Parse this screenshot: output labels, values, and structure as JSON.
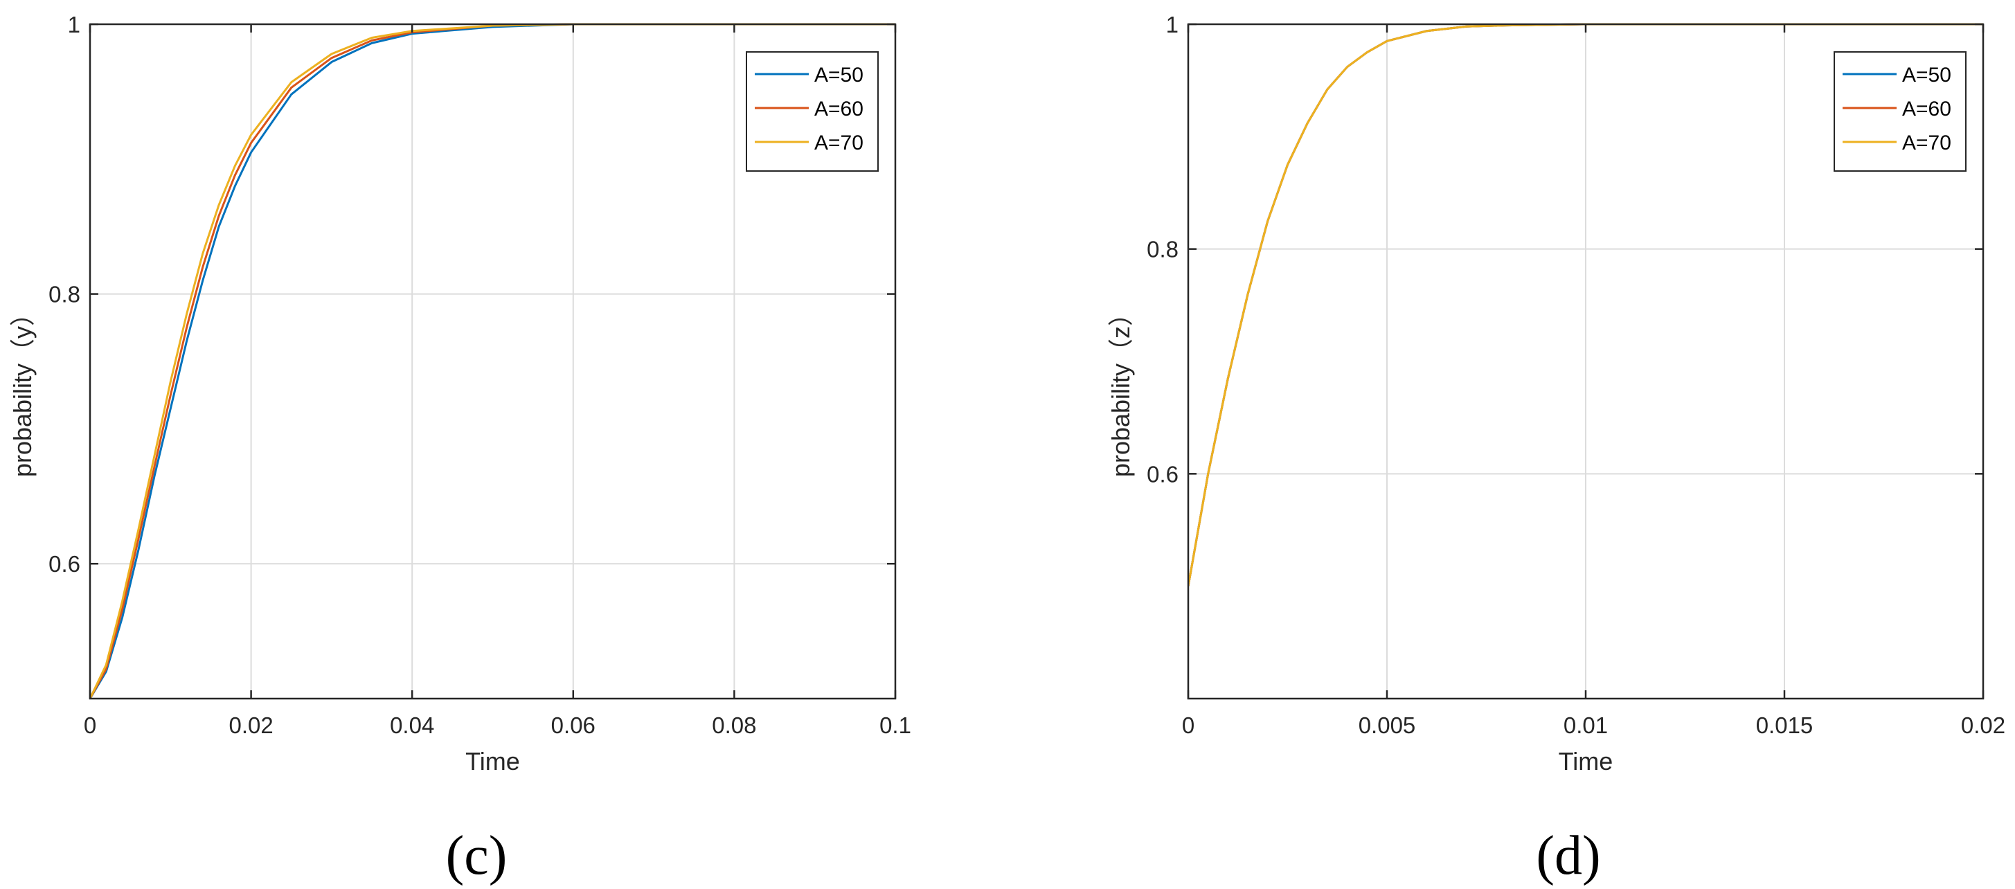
{
  "chart_data": [
    {
      "type": "line",
      "xlabel": "Time",
      "ylabel": "probability（y）",
      "caption": "(c)",
      "xlim": [
        0,
        0.1
      ],
      "ylim": [
        0.5,
        1
      ],
      "xticks": [
        0,
        0.02,
        0.04,
        0.06,
        0.08,
        0.1
      ],
      "xtick_labels": [
        "0",
        "0.02",
        "0.04",
        "0.06",
        "0.08",
        "0.1"
      ],
      "yticks": [
        0.6,
        0.8,
        1
      ],
      "ytick_labels": [
        "0.6",
        "0.8",
        "1"
      ],
      "grid": true,
      "legend_position": "top-right",
      "series": [
        {
          "name": "A=50",
          "color": "#0072BD",
          "x": [
            0,
            0.002,
            0.004,
            0.006,
            0.008,
            0.01,
            0.012,
            0.014,
            0.016,
            0.018,
            0.02,
            0.025,
            0.03,
            0.035,
            0.04,
            0.05,
            0.06,
            0.08,
            0.1
          ],
          "y": [
            0.5,
            0.52,
            0.56,
            0.61,
            0.665,
            0.715,
            0.765,
            0.81,
            0.85,
            0.88,
            0.905,
            0.948,
            0.972,
            0.986,
            0.993,
            0.998,
            1.0,
            1.0,
            1.0
          ]
        },
        {
          "name": "A=60",
          "color": "#D95319",
          "x": [
            0,
            0.002,
            0.004,
            0.006,
            0.008,
            0.01,
            0.012,
            0.014,
            0.016,
            0.018,
            0.02,
            0.025,
            0.03,
            0.035,
            0.04,
            0.05,
            0.06,
            0.08,
            0.1
          ],
          "y": [
            0.5,
            0.522,
            0.566,
            0.618,
            0.672,
            0.725,
            0.775,
            0.82,
            0.858,
            0.888,
            0.912,
            0.953,
            0.975,
            0.988,
            0.994,
            0.999,
            1.0,
            1.0,
            1.0
          ]
        },
        {
          "name": "A=70",
          "color": "#EDB120",
          "x": [
            0,
            0.002,
            0.004,
            0.006,
            0.008,
            0.01,
            0.012,
            0.014,
            0.016,
            0.018,
            0.02,
            0.025,
            0.03,
            0.035,
            0.04,
            0.05,
            0.06,
            0.08,
            0.1
          ],
          "y": [
            0.5,
            0.525,
            0.572,
            0.625,
            0.68,
            0.735,
            0.785,
            0.83,
            0.866,
            0.895,
            0.918,
            0.957,
            0.978,
            0.99,
            0.995,
            0.999,
            1.0,
            1.0,
            1.0
          ]
        }
      ]
    },
    {
      "type": "line",
      "xlabel": "Time",
      "ylabel": "probability（z）",
      "caption": "(d)",
      "xlim": [
        0,
        0.02
      ],
      "ylim": [
        0.4,
        1
      ],
      "xticks": [
        0,
        0.005,
        0.01,
        0.015,
        0.02
      ],
      "xtick_labels": [
        "0",
        "0.005",
        "0.01",
        "0.015",
        "0.02"
      ],
      "yticks": [
        0.6,
        0.8,
        1
      ],
      "ytick_labels": [
        "0.6",
        "0.8",
        "1"
      ],
      "grid": true,
      "legend_position": "top-right",
      "series": [
        {
          "name": "A=50",
          "color": "#0072BD",
          "x": [
            0,
            0.0005,
            0.001,
            0.0015,
            0.002,
            0.0025,
            0.003,
            0.0035,
            0.004,
            0.0045,
            0.005,
            0.006,
            0.007,
            0.008,
            0.01,
            0.015,
            0.02
          ],
          "y": [
            0.5,
            0.6,
            0.685,
            0.76,
            0.825,
            0.875,
            0.912,
            0.942,
            0.962,
            0.975,
            0.985,
            0.994,
            0.998,
            0.999,
            1.0,
            1.0,
            1.0
          ]
        },
        {
          "name": "A=60",
          "color": "#D95319",
          "x": [
            0,
            0.0005,
            0.001,
            0.0015,
            0.002,
            0.0025,
            0.003,
            0.0035,
            0.004,
            0.0045,
            0.005,
            0.006,
            0.007,
            0.008,
            0.01,
            0.015,
            0.02
          ],
          "y": [
            0.5,
            0.6,
            0.685,
            0.76,
            0.825,
            0.875,
            0.912,
            0.942,
            0.962,
            0.975,
            0.985,
            0.994,
            0.998,
            0.999,
            1.0,
            1.0,
            1.0
          ]
        },
        {
          "name": "A=70",
          "color": "#EDB120",
          "x": [
            0,
            0.0005,
            0.001,
            0.0015,
            0.002,
            0.0025,
            0.003,
            0.0035,
            0.004,
            0.0045,
            0.005,
            0.006,
            0.007,
            0.008,
            0.01,
            0.015,
            0.02
          ],
          "y": [
            0.5,
            0.6,
            0.685,
            0.76,
            0.825,
            0.875,
            0.912,
            0.942,
            0.962,
            0.975,
            0.985,
            0.994,
            0.998,
            0.999,
            1.0,
            1.0,
            1.0
          ]
        }
      ]
    }
  ]
}
